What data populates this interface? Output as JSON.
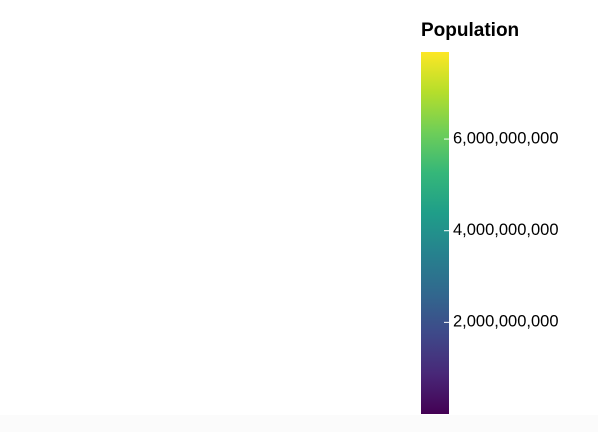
{
  "chart_data": {
    "type": "heatmap",
    "legend": {
      "title": "Population",
      "placement": "right",
      "scale": "viridis",
      "domain": [
        0,
        7900000000
      ],
      "ticks": [
        2000000000,
        4000000000,
        6000000000
      ],
      "tick_labels": [
        "2,000,000,000",
        "4,000,000,000",
        "6,000,000,000"
      ],
      "colors": [
        "#440154",
        "#482878",
        "#3e4989",
        "#31688e",
        "#26828e",
        "#1f9e89",
        "#35b779",
        "#6ece58",
        "#b5de2b",
        "#fde725"
      ]
    }
  }
}
